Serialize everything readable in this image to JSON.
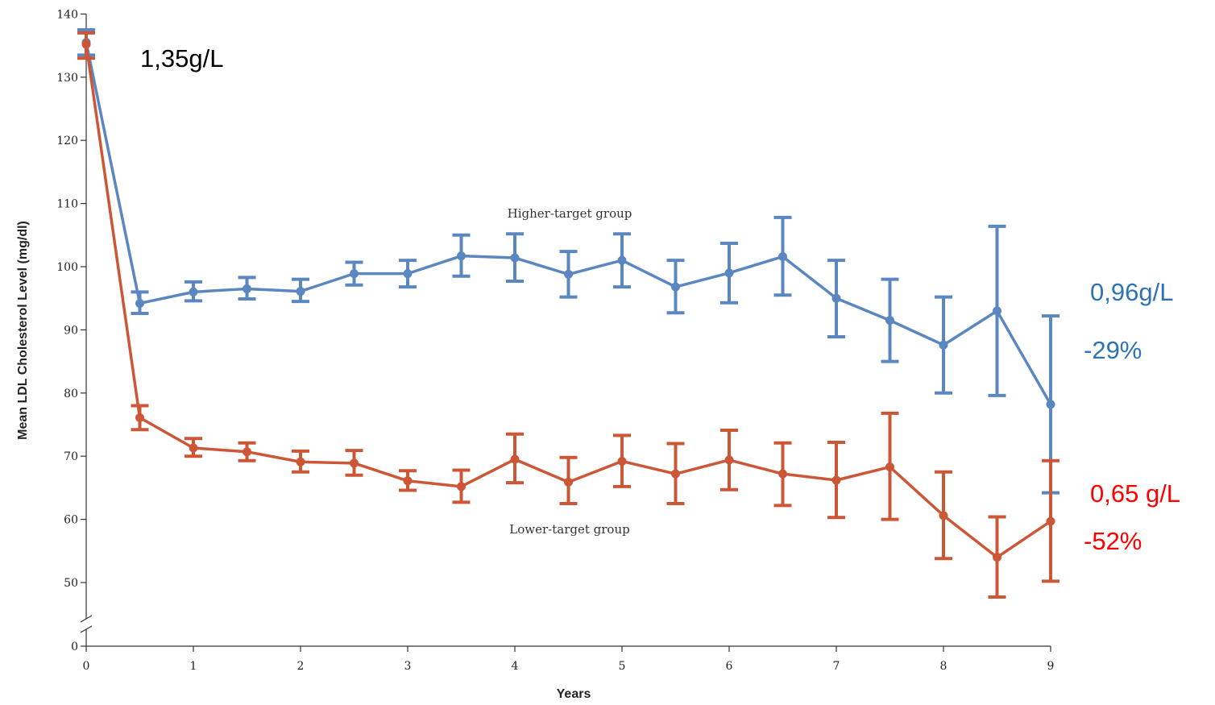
{
  "chart_data": {
    "type": "line",
    "title": "",
    "xlabel": "Years",
    "ylabel": "Mean LDL Cholesterol Level (mg/dl)",
    "xlim": [
      0,
      9
    ],
    "ylim": [
      0,
      140
    ],
    "y_axis_break": [
      0,
      45
    ],
    "x_ticks": [
      0,
      1,
      2,
      3,
      4,
      5,
      6,
      7,
      8,
      9
    ],
    "y_ticks": [
      0,
      50,
      60,
      70,
      80,
      90,
      100,
      110,
      120,
      130,
      140
    ],
    "grid": false,
    "series": [
      {
        "name": "Higher-target group",
        "color": "#5b87c0",
        "x": [
          0,
          0.5,
          1,
          1.5,
          2,
          2.5,
          3,
          3.5,
          4,
          4.5,
          5,
          5.5,
          6,
          6.5,
          7,
          7.5,
          8,
          8.5,
          9
        ],
        "y": [
          135.5,
          94.2,
          96.0,
          96.5,
          96.1,
          98.9,
          98.9,
          101.7,
          101.4,
          98.8,
          101.0,
          96.8,
          99.0,
          101.6,
          95.0,
          91.5,
          87.6,
          93.0,
          78.2
        ],
        "err_low": [
          133.5,
          92.6,
          94.6,
          94.9,
          94.5,
          97.1,
          96.8,
          98.5,
          97.7,
          95.2,
          96.8,
          92.7,
          94.3,
          95.5,
          88.9,
          85.0,
          80.0,
          79.6,
          64.2
        ],
        "err_high": [
          137.5,
          96.0,
          97.6,
          98.3,
          98.0,
          100.7,
          101.0,
          105.0,
          105.2,
          102.4,
          105.2,
          101.0,
          103.7,
          107.8,
          101.0,
          98.0,
          95.2,
          106.4,
          92.2
        ]
      },
      {
        "name": "Lower-target group",
        "color": "#cb5737",
        "x": [
          0,
          0.5,
          1,
          1.5,
          2,
          2.5,
          3,
          3.5,
          4,
          4.5,
          5,
          5.5,
          6,
          6.5,
          7,
          7.5,
          8,
          8.5,
          9
        ],
        "y": [
          135.2,
          76.1,
          71.3,
          70.7,
          69.1,
          68.9,
          66.1,
          65.2,
          69.5,
          65.9,
          69.2,
          67.2,
          69.4,
          67.2,
          66.2,
          68.3,
          60.6,
          54.0,
          59.7
        ],
        "err_low": [
          133.0,
          74.2,
          70.0,
          69.3,
          67.5,
          67.0,
          64.6,
          62.7,
          65.8,
          62.5,
          65.2,
          62.5,
          64.7,
          62.2,
          60.3,
          60.0,
          53.8,
          47.7,
          50.2
        ],
        "err_high": [
          137.0,
          78.0,
          72.8,
          72.1,
          70.8,
          70.9,
          67.7,
          67.8,
          73.5,
          69.8,
          73.3,
          72.0,
          74.1,
          72.1,
          72.2,
          76.8,
          67.5,
          60.4,
          69.3
        ]
      }
    ],
    "annotations": [
      {
        "text": "1,35g/L",
        "color": "#000000"
      },
      {
        "text": "0,96g/L",
        "color": "#2e74b5"
      },
      {
        "text": "-29%",
        "color": "#2e74b5"
      },
      {
        "text": "0,65 g/L",
        "color": "#ff0000"
      },
      {
        "text": "-52%",
        "color": "#ff0000"
      }
    ]
  }
}
